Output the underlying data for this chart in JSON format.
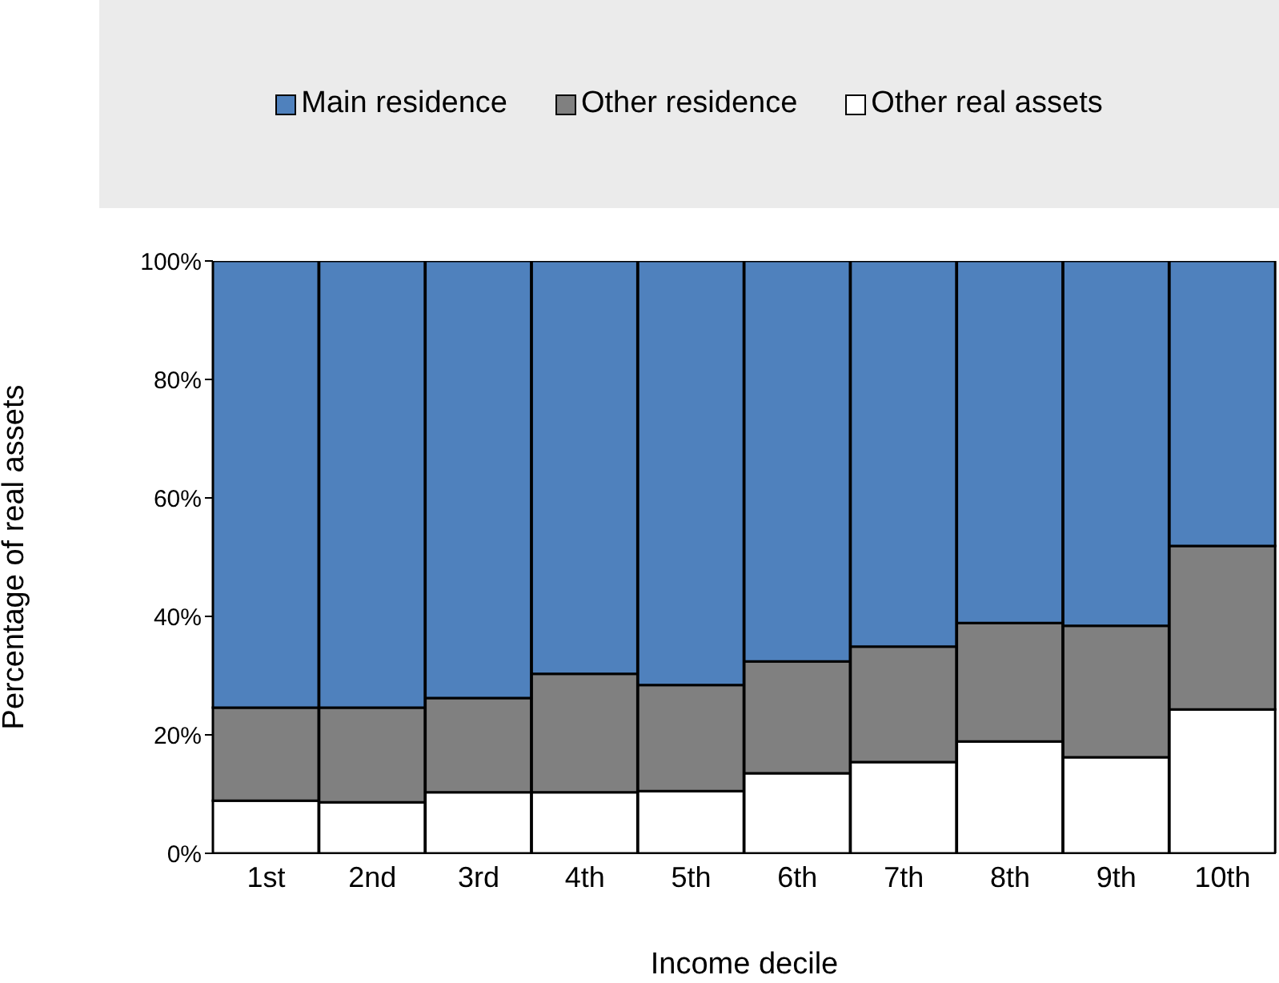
{
  "chart_data": {
    "type": "bar",
    "stacked": true,
    "xlabel": "Income decile",
    "ylabel": "Percentage of real assets",
    "categories": [
      "1st",
      "2nd",
      "3rd",
      "4th",
      "5th",
      "6th",
      "7th",
      "8th",
      "9th",
      "10th"
    ],
    "series": [
      {
        "name": "Other real assets",
        "color": "#ffffff",
        "values": [
          8.9,
          8.6,
          10.3,
          10.3,
          10.5,
          13.5,
          15.4,
          18.9,
          16.2,
          24.3
        ]
      },
      {
        "name": "Other residence",
        "color": "#808080",
        "values": [
          15.7,
          16.0,
          15.9,
          20.0,
          17.9,
          18.9,
          19.5,
          20.0,
          22.2,
          27.6
        ]
      },
      {
        "name": "Main residence",
        "color": "#4f81bd",
        "values": [
          75.4,
          75.4,
          73.8,
          69.7,
          71.6,
          67.6,
          65.1,
          61.1,
          61.6,
          48.1
        ]
      }
    ],
    "ylim": [
      0,
      100
    ],
    "yticks": [
      {
        "value": 0,
        "label": "0%"
      },
      {
        "value": 20,
        "label": "20%"
      },
      {
        "value": 40,
        "label": "40%"
      },
      {
        "value": 60,
        "label": "60%"
      },
      {
        "value": 80,
        "label": "80%"
      },
      {
        "value": 100,
        "label": "100%"
      }
    ],
    "grid": false,
    "legend": "top"
  }
}
